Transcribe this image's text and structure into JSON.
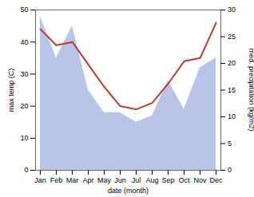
{
  "chart_data": {
    "type": "line",
    "xlabel": "date (month)",
    "ylabel": "max temp (C)",
    "y2label": "med. precipitation (kg/m2)",
    "categories": [
      "Jan",
      "Feb",
      "Mar",
      "Apr",
      "May",
      "Jun",
      "Jul",
      "Aug",
      "Sep",
      "Oct",
      "Nov",
      "Dec"
    ],
    "series": [
      {
        "type": "area",
        "color": "#b8c4e8",
        "values": [
          48,
          35,
          45,
          25,
          18,
          18,
          15,
          17,
          28,
          19,
          32,
          35
        ]
      },
      {
        "type": "line",
        "color": "#c0392b",
        "values": [
          44,
          39,
          40,
          33,
          26,
          20,
          19,
          21,
          27,
          34,
          35,
          46
        ]
      }
    ],
    "ylim": [
      0,
      50
    ],
    "yticks": [
      0,
      10,
      20,
      30,
      40,
      50
    ],
    "y2lim": [
      0,
      30
    ],
    "y2ticks": [
      0,
      5,
      10,
      15,
      20,
      25,
      30
    ]
  }
}
